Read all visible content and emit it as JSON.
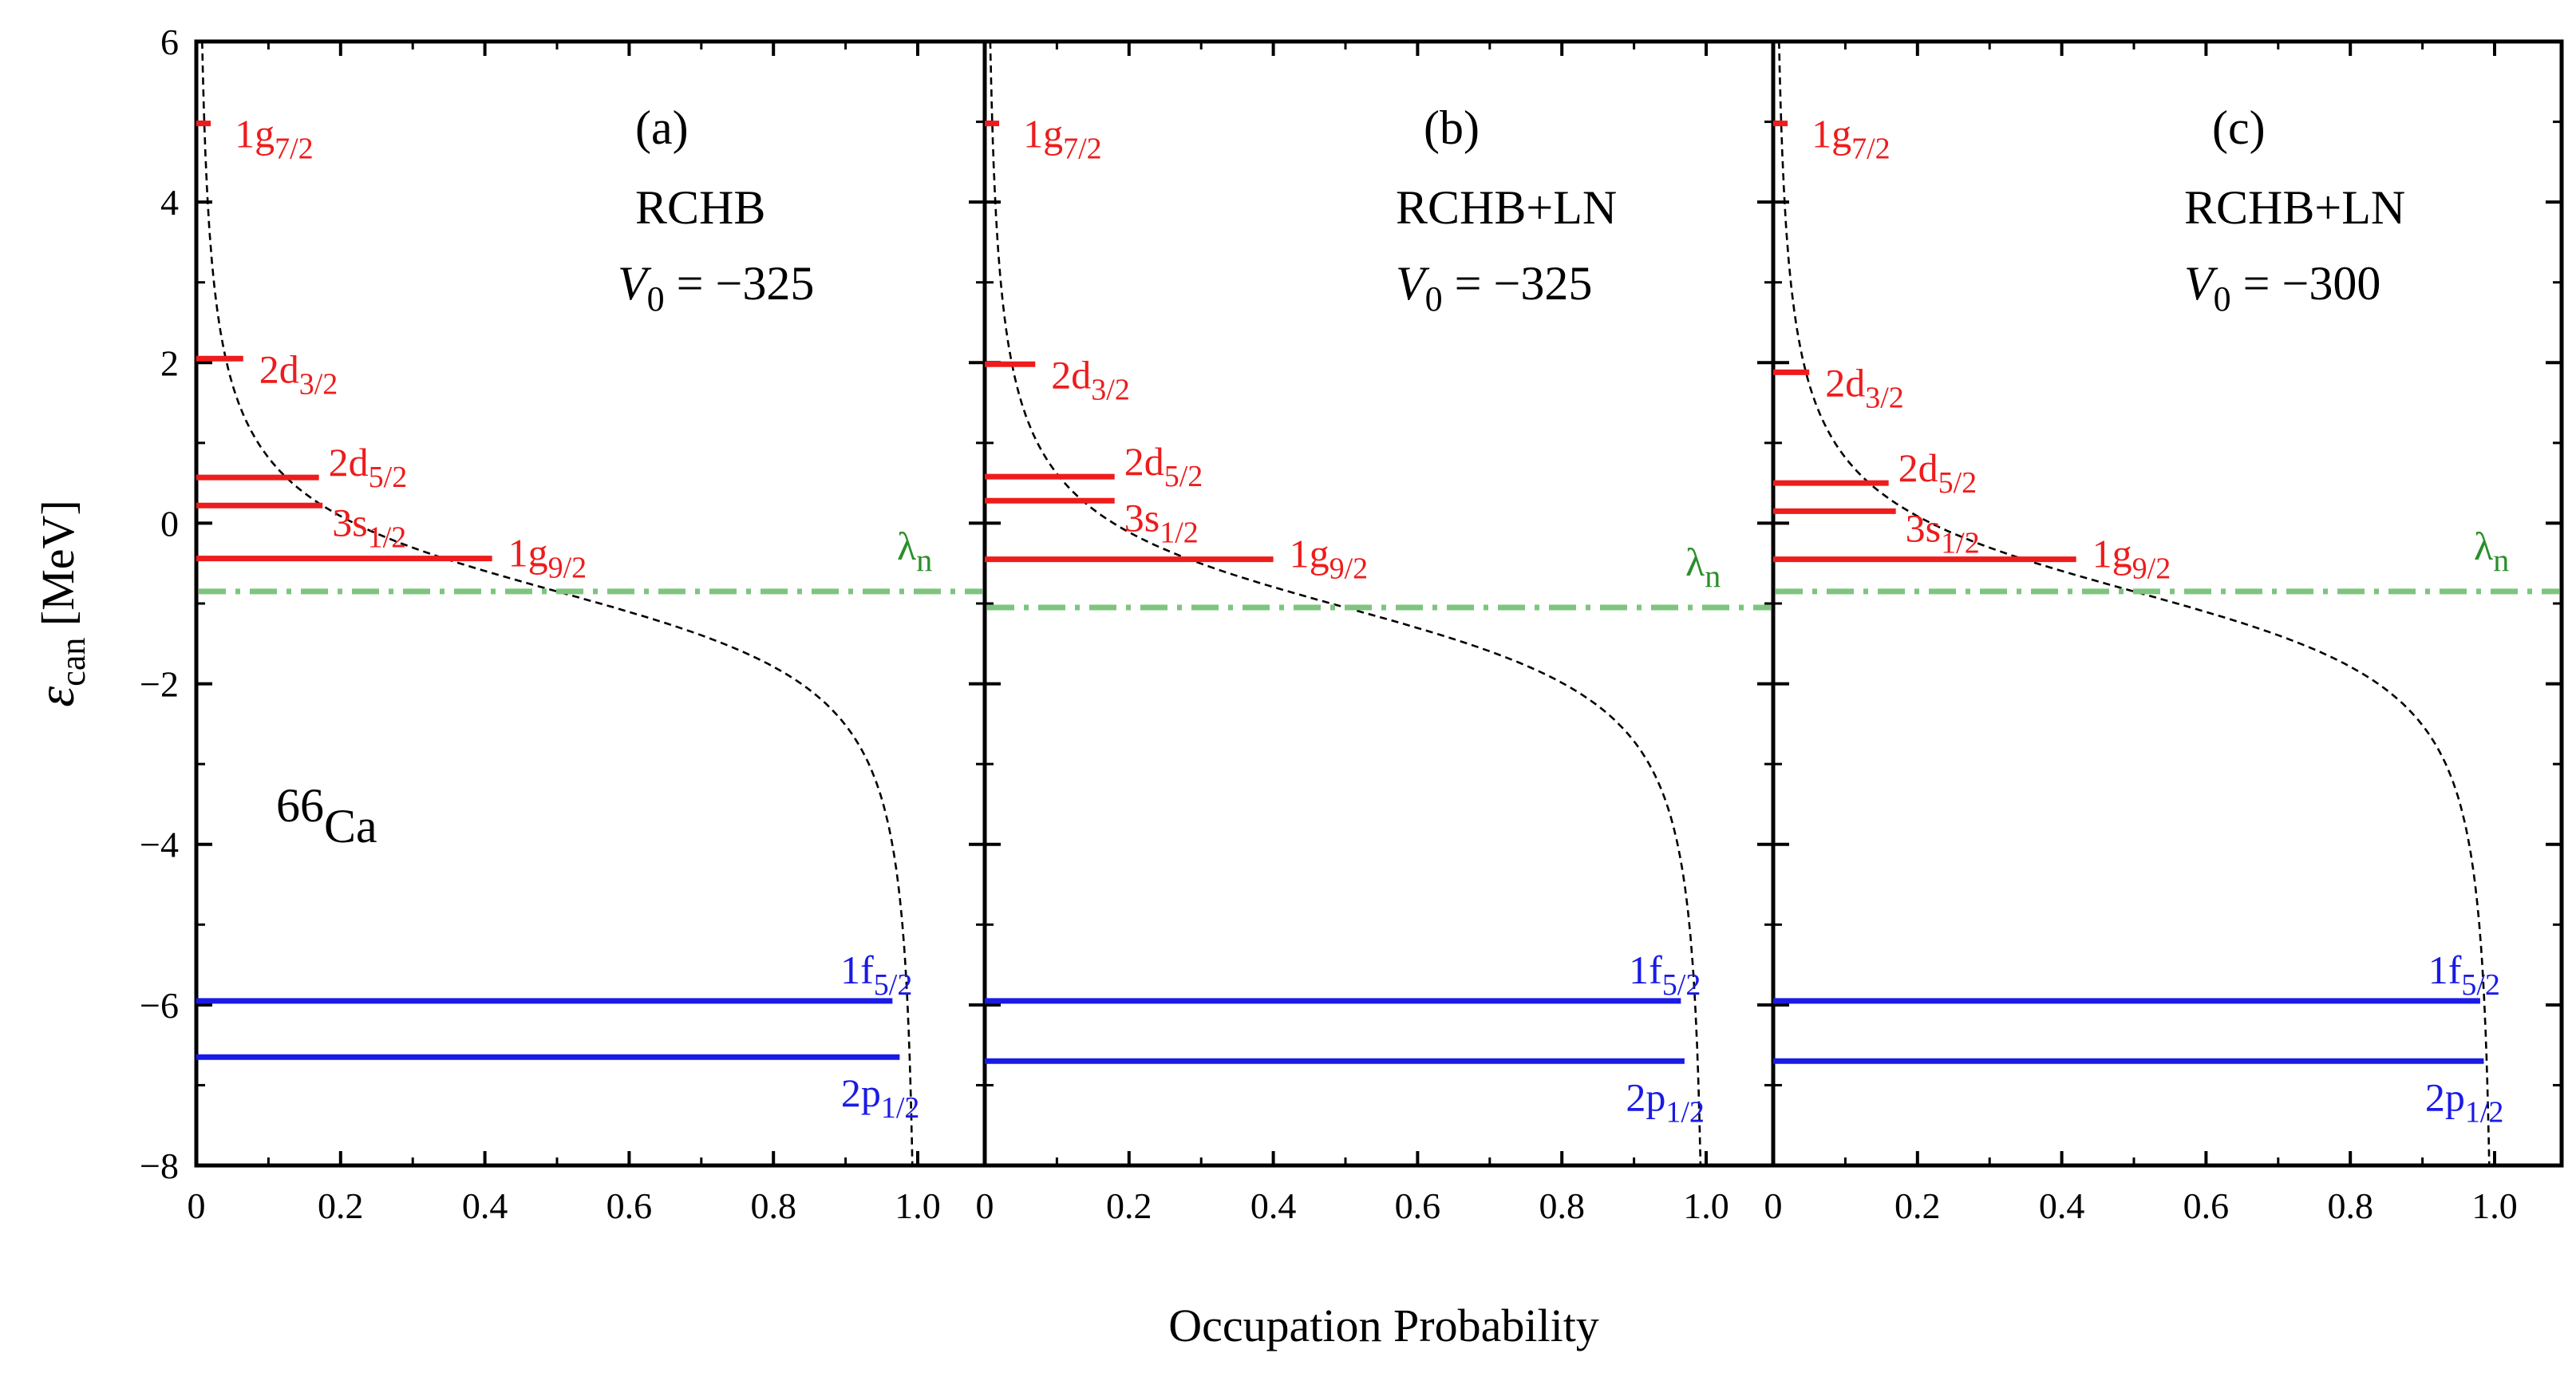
{
  "chart_data": {
    "type": "multi-panel level scheme",
    "nucleus": {
      "mass": "66",
      "symbol": "Ca"
    },
    "xlabel": "Occupation Probability",
    "ylabel": {
      "symbol": "ε",
      "subscript": "can",
      "unit": " [MeV]"
    },
    "xlim": [
      0,
      1.05
    ],
    "ylim": [
      -8,
      6
    ],
    "xticks": [
      {
        "value": 0,
        "label": "0"
      },
      {
        "value": 0.2,
        "label": "0.2"
      },
      {
        "value": 0.4,
        "label": "0.4"
      },
      {
        "value": 0.6,
        "label": "0.6"
      },
      {
        "value": 0.8,
        "label": "0.8"
      },
      {
        "value": 1.0,
        "label": "1.0"
      }
    ],
    "yticks": [
      {
        "value": 6,
        "label": "6"
      },
      {
        "value": 4,
        "label": "4"
      },
      {
        "value": 2,
        "label": "2"
      },
      {
        "value": 0,
        "label": "0"
      },
      {
        "value": -2,
        "label": "−2"
      },
      {
        "value": -4,
        "label": "−4"
      },
      {
        "value": -6,
        "label": "−6"
      },
      {
        "value": -8,
        "label": "−8"
      }
    ],
    "colors": {
      "unbound": "#ee1c1c",
      "bound": "#1a1ae6",
      "fermi": "#7ec47e",
      "curve": "#000000"
    },
    "fermi_label": {
      "symbol": "λ",
      "subscript": "n"
    },
    "panels": [
      {
        "id": "a",
        "tag": "(a)",
        "model": "RCHB",
        "v0": {
          "symbol": "V",
          "subscript": "0",
          "value": " = −325"
        },
        "lambda": -0.85,
        "levels": [
          {
            "name": "1g",
            "j": "7/2",
            "energy": 4.98,
            "occupation": 0.02,
            "color": "red"
          },
          {
            "name": "2d",
            "j": "3/2",
            "energy": 2.05,
            "occupation": 0.065,
            "color": "red"
          },
          {
            "name": "2d",
            "j": "5/2",
            "energy": 0.57,
            "occupation": 0.17,
            "color": "red"
          },
          {
            "name": "3s",
            "j": "1/2",
            "energy": 0.22,
            "occupation": 0.175,
            "color": "red"
          },
          {
            "name": "1g",
            "j": "9/2",
            "energy": -0.44,
            "occupation": 0.41,
            "color": "red"
          },
          {
            "name": "1f",
            "j": "5/2",
            "energy": -5.95,
            "occupation": 0.965,
            "color": "blue"
          },
          {
            "name": "2p",
            "j": "1/2",
            "energy": -6.65,
            "occupation": 0.975,
            "color": "blue"
          }
        ]
      },
      {
        "id": "b",
        "tag": "(b)",
        "model": "RCHB+LN",
        "v0": {
          "symbol": "V",
          "subscript": "0",
          "value": " = −325"
        },
        "lambda": -1.05,
        "levels": [
          {
            "name": "1g",
            "j": "7/2",
            "energy": 4.98,
            "occupation": 0.02,
            "color": "red"
          },
          {
            "name": "2d",
            "j": "3/2",
            "energy": 1.98,
            "occupation": 0.07,
            "color": "red"
          },
          {
            "name": "2d",
            "j": "5/2",
            "energy": 0.58,
            "occupation": 0.18,
            "color": "red"
          },
          {
            "name": "3s",
            "j": "1/2",
            "energy": 0.28,
            "occupation": 0.18,
            "color": "red"
          },
          {
            "name": "1g",
            "j": "9/2",
            "energy": -0.45,
            "occupation": 0.4,
            "color": "red"
          },
          {
            "name": "1f",
            "j": "5/2",
            "energy": -5.95,
            "occupation": 0.965,
            "color": "blue"
          },
          {
            "name": "2p",
            "j": "1/2",
            "energy": -6.7,
            "occupation": 0.97,
            "color": "blue"
          }
        ]
      },
      {
        "id": "c",
        "tag": "(c)",
        "model": "RCHB+LN",
        "v0": {
          "symbol": "V",
          "subscript": "0",
          "value": " = −300"
        },
        "lambda": -0.85,
        "levels": [
          {
            "name": "1g",
            "j": "7/2",
            "energy": 4.98,
            "occupation": 0.02,
            "color": "red"
          },
          {
            "name": "2d",
            "j": "3/2",
            "energy": 1.88,
            "occupation": 0.05,
            "color": "red"
          },
          {
            "name": "2d",
            "j": "5/2",
            "energy": 0.5,
            "occupation": 0.16,
            "color": "red"
          },
          {
            "name": "3s",
            "j": "1/2",
            "energy": 0.15,
            "occupation": 0.17,
            "color": "red"
          },
          {
            "name": "1g",
            "j": "9/2",
            "energy": -0.45,
            "occupation": 0.42,
            "color": "red"
          },
          {
            "name": "1f",
            "j": "5/2",
            "energy": -5.95,
            "occupation": 0.98,
            "color": "blue"
          },
          {
            "name": "2p",
            "j": "1/2",
            "energy": -6.7,
            "occupation": 0.985,
            "color": "blue"
          }
        ]
      }
    ]
  }
}
